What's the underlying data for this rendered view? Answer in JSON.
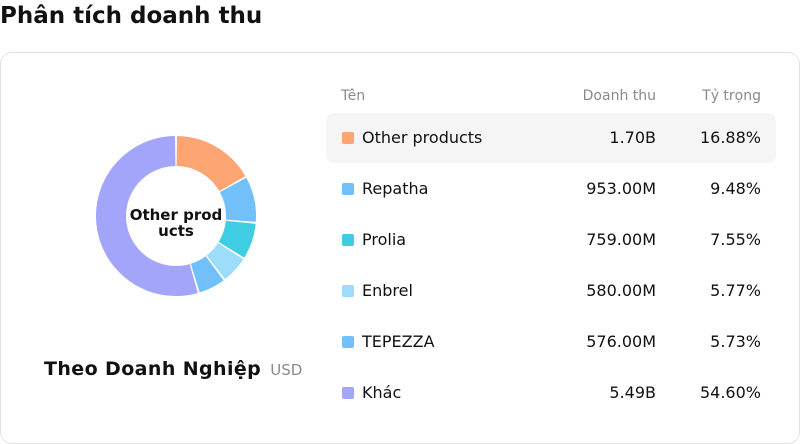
{
  "title": "Phân tích doanh thu",
  "donut": {
    "center_label": "Other products",
    "company": "Theo Doanh Nghiệp",
    "unit": "USD"
  },
  "table": {
    "headers": {
      "name": "Tên",
      "revenue": "Doanh thu",
      "share": "Tỷ trọng"
    },
    "rows": [
      {
        "name": "Other products",
        "revenue": "1.70B",
        "share": "16.88%",
        "color": "#fca572",
        "active": true
      },
      {
        "name": "Repatha",
        "revenue": "953.00M",
        "share": "9.48%",
        "color": "#72c0fb"
      },
      {
        "name": "Prolia",
        "revenue": "759.00M",
        "share": "7.55%",
        "color": "#3ecde3"
      },
      {
        "name": "Enbrel",
        "revenue": "580.00M",
        "share": "5.77%",
        "color": "#9edcfb"
      },
      {
        "name": "TEPEZZA",
        "revenue": "576.00M",
        "share": "5.73%",
        "color": "#72c0fb"
      },
      {
        "name": "Khác",
        "revenue": "5.49B",
        "share": "54.60%",
        "color": "#a3a5fb"
      }
    ]
  },
  "chart_data": {
    "type": "pie",
    "categories": [
      "Other products",
      "Repatha",
      "Prolia",
      "Enbrel",
      "TEPEZZA",
      "Khác"
    ],
    "values": [
      16.88,
      9.48,
      7.55,
      5.77,
      5.73,
      54.6
    ],
    "colors": [
      "#fca572",
      "#72c0fb",
      "#3ecde3",
      "#9edcfb",
      "#72c0fb",
      "#a3a5fb"
    ]
  }
}
